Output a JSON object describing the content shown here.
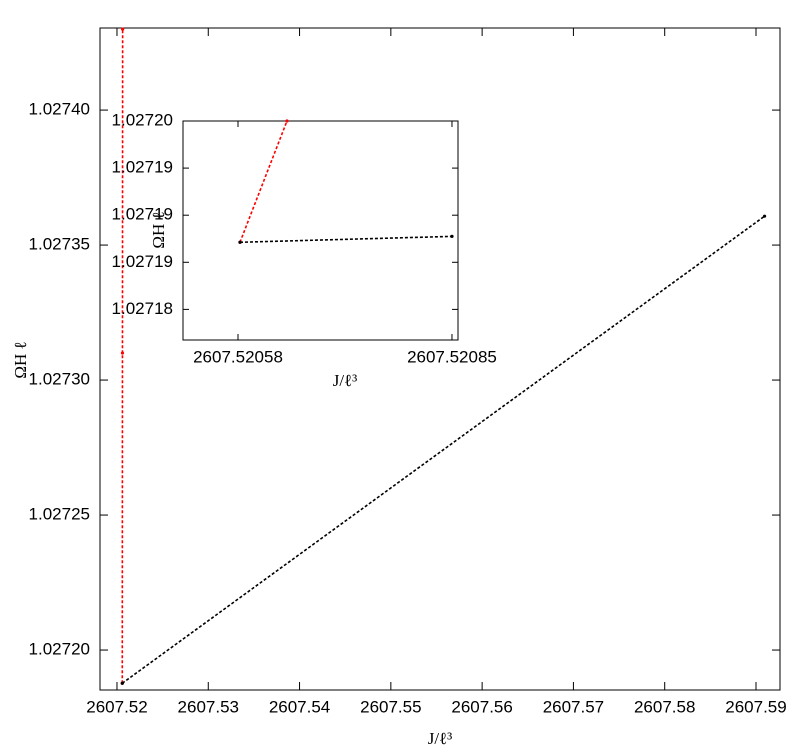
{
  "chart_data": [
    {
      "type": "line",
      "x_label": "J/ℓ³",
      "y_label": "ΩH ℓ",
      "xlim": [
        2607.51814,
        2607.59263
      ],
      "ylim": [
        1.0271852,
        1.0274304
      ],
      "xticks": [
        2607.52,
        2607.53,
        2607.54,
        2607.55,
        2607.56,
        2607.57,
        2607.58,
        2607.59
      ],
      "yticks": [
        {
          "value": 1.0272,
          "label": "1.02720"
        },
        {
          "value": 1.02725,
          "label": "1.02725"
        },
        {
          "value": 1.0273,
          "label": "1.02730"
        },
        {
          "value": 1.02735,
          "label": "1.02735"
        },
        {
          "value": 1.0274,
          "label": "1.02740"
        }
      ],
      "series": [
        {
          "color": "#ff0000",
          "x": [
            2607.52058,
            2607.5206,
            2607.52062
          ],
          "values": [
            1.0271877,
            1.02731,
            1.02743
          ]
        },
        {
          "color": "#000000",
          "x": [
            2607.52058,
            2607.59094
          ],
          "values": [
            1.0271877,
            1.0273607
          ]
        }
      ]
    },
    {
      "type": "line",
      "x_label": "J/ℓ³",
      "y_label": "ΩH ℓ",
      "xlim": [
        2607.5205106,
        2607.5208576
      ],
      "ylim": [
        1.0271794,
        1.027198
      ],
      "xticks": [
        2607.52058,
        2607.52085
      ],
      "yticks": [
        {
          "value": 1.027182,
          "label": "1.02718"
        },
        {
          "value": 1.027186,
          "label": "1.02719"
        },
        {
          "value": 1.02719,
          "label": "1.02719"
        },
        {
          "value": 1.027194,
          "label": "1.02719"
        },
        {
          "value": 1.027198,
          "label": "1.02720"
        }
      ],
      "series": [
        {
          "color": "#ff0000",
          "x": [
            2607.5205825,
            2607.5206418
          ],
          "values": [
            1.0271877,
            1.027198
          ]
        },
        {
          "color": "#000000",
          "x": [
            2607.5205825,
            2607.52085
          ],
          "values": [
            1.0271877,
            1.0271882
          ]
        }
      ]
    }
  ]
}
